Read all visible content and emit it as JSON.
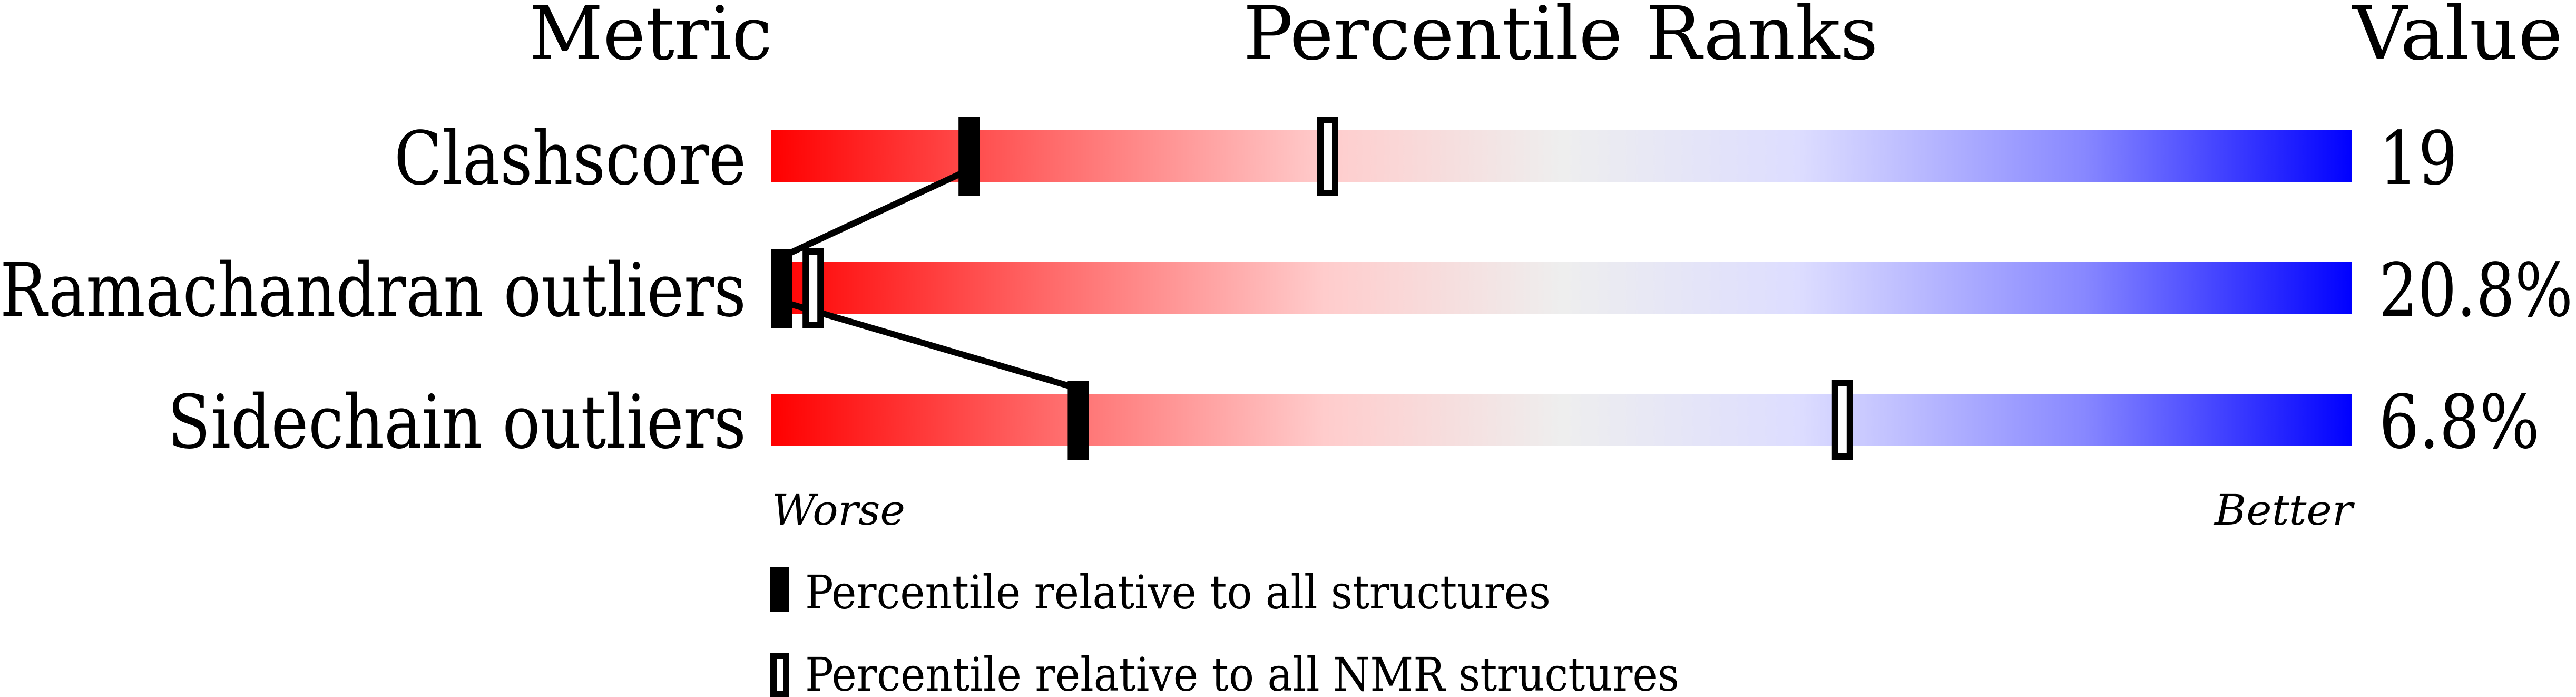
{
  "chart_data": {
    "type": "bar",
    "headers": {
      "metric": "Metric",
      "ranks": "Percentile Ranks",
      "value": "Value"
    },
    "metrics": [
      {
        "name": "Clashscore",
        "value": "19",
        "percentile_all": 12,
        "percentile_nmr": 35
      },
      {
        "name": "Ramachandran outliers",
        "value": "20.8%",
        "percentile_all": 0,
        "percentile_nmr": 2
      },
      {
        "name": "Sidechain outliers",
        "value": "6.8%",
        "percentile_all": 19,
        "percentile_nmr": 68
      }
    ],
    "xlim": [
      0,
      100
    ],
    "axis_labels": {
      "worse": "Worse",
      "better": "Better"
    },
    "legend": {
      "all": "Percentile relative to all structures",
      "nmr": "Percentile relative to all NMR structures"
    },
    "colors": {
      "worse": "#ff0000",
      "middle": "#eeeeee",
      "better": "#0000ff"
    }
  }
}
